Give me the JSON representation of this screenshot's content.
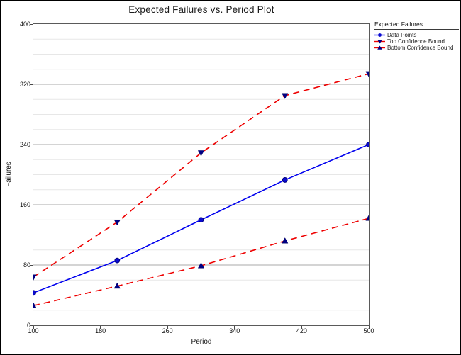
{
  "window": {
    "background": "#ffffff",
    "border_color": "#000000"
  },
  "chart_data": {
    "type": "line",
    "title": "Expected Failures vs. Period Plot",
    "xlabel": "Period",
    "ylabel": "Failures",
    "xlim": [
      100,
      500
    ],
    "ylim": [
      0,
      400
    ],
    "x_ticks": [
      100,
      180,
      260,
      340,
      420,
      500
    ],
    "y_ticks": [
      0,
      80,
      160,
      240,
      320,
      400
    ],
    "y_minor_step": 20,
    "grid": "horizontal-only",
    "legend_position": "top-right",
    "x": [
      100,
      200,
      300,
      400,
      500
    ],
    "series": [
      {
        "name": "Data Points",
        "values": [
          43,
          86,
          140,
          193,
          240
        ],
        "line_color": "#0000ee",
        "line_style": "solid",
        "marker": "circle",
        "marker_color": "#0a0ad0",
        "marker_edge": "#000080"
      },
      {
        "name": "Top Confidence Bound",
        "values": [
          64,
          137,
          229,
          305,
          334
        ],
        "line_color": "#ee0000",
        "line_style": "dashed",
        "marker": "triangle-down",
        "marker_color": "#000085",
        "marker_edge": "#000060"
      },
      {
        "name": "Bottom Confidence Bound",
        "values": [
          26,
          52,
          79,
          112,
          142
        ],
        "line_color": "#ee0000",
        "line_style": "dashed",
        "marker": "triangle-up",
        "marker_color": "#000085",
        "marker_edge": "#000060"
      }
    ]
  },
  "legend": {
    "title": "Expected Failures"
  },
  "style": {
    "grid_major_color": "#a8a8a8",
    "grid_minor_color": "#e7e7e7",
    "frame_color": "#5a5a5a"
  }
}
